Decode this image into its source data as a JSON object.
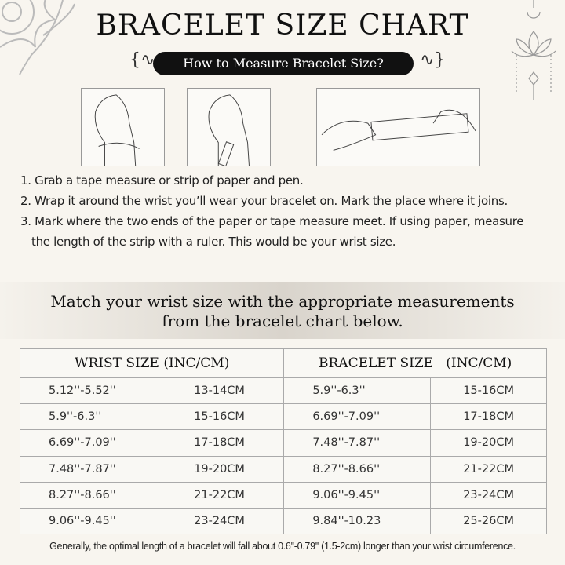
{
  "title": "BRACELET SIZE CHART",
  "subtitle": "How to Measure Bracelet Size?",
  "steps": [
    "1. Grab a tape measure or strip of paper and pen.",
    "2. Wrap it around the wrist you’ll wear your bracelet on. Mark the place where it joins.",
    "3. Mark where the two ends of the paper or tape measure meet. If using paper, measure",
    "the length of the strip with a ruler. This would be your wrist size."
  ],
  "band": {
    "line1": "Match your wrist size with the appropriate measurements",
    "line2": "from the bracelet chart below."
  },
  "table": {
    "headers": [
      "WRIST SIZE (INC/CM)",
      "BRACELET SIZE   (INC/CM)"
    ],
    "rows": [
      [
        "5.12''-5.52''",
        "13-14CM",
        "5.9''-6.3''",
        "15-16CM"
      ],
      [
        "5.9''-6.3''",
        "15-16CM",
        "6.69''-7.09''",
        "17-18CM"
      ],
      [
        "6.69''-7.09''",
        "17-18CM",
        "7.48''-7.87''",
        "19-20CM"
      ],
      [
        "7.48''-7.87''",
        "19-20CM",
        "8.27''-8.66''",
        "21-22CM"
      ],
      [
        "8.27''-8.66''",
        "21-22CM",
        "9.06''-9.45''",
        "23-24CM"
      ],
      [
        "9.06''-9.45''",
        "23-24CM",
        "9.84''-10.23",
        "25-26CM"
      ]
    ]
  },
  "footnote": "Generally, the optimal length of a bracelet will fall about 0.6''-0.79'' (1.5-2cm) longer than your wrist circumference."
}
